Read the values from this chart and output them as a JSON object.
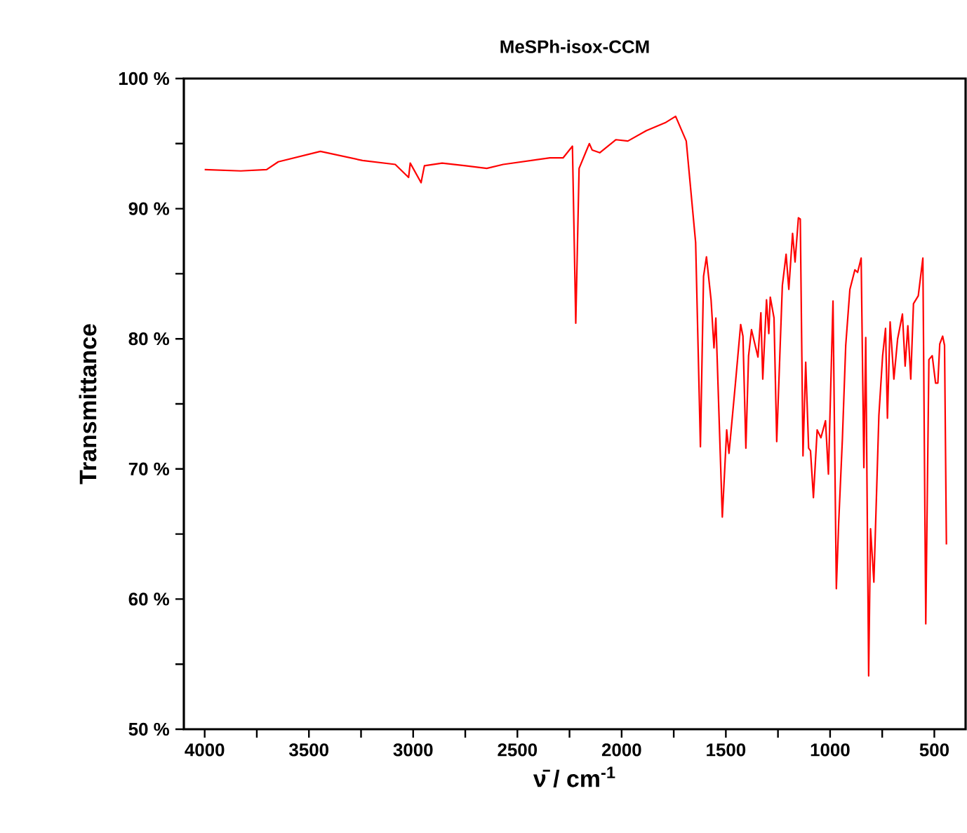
{
  "chart_data": {
    "type": "line",
    "title": "MeSPh-isox-CCM",
    "xlabel": "ν̄ / cm$^{-1}$",
    "ylabel": "Transmittance",
    "xlim": [
      4100,
      350
    ],
    "ylim": [
      50,
      100
    ],
    "xticks": [
      4000,
      {
        "value": 3750,
        "label": null
      },
      3500,
      {
        "value": 3250,
        "label": null
      },
      3000,
      {
        "value": 2750,
        "label": null
      },
      2500,
      {
        "value": 2250,
        "label": null
      },
      2000,
      {
        "value": 1750,
        "label": null
      },
      1500,
      {
        "value": 1250,
        "label": null
      },
      1000,
      {
        "value": 750,
        "label": null
      },
      500
    ],
    "yticks": [
      {
        "value": 50,
        "label": "50 %"
      },
      {
        "value": 55,
        "label": null
      },
      {
        "value": 60,
        "label": "60 %"
      },
      {
        "value": 65,
        "label": null
      },
      {
        "value": 70,
        "label": "70 %"
      },
      {
        "value": 75,
        "label": null
      },
      {
        "value": 80,
        "label": "80 %"
      },
      {
        "value": 85,
        "label": null
      },
      {
        "value": 90,
        "label": "90 %"
      },
      {
        "value": 95,
        "label": null
      },
      {
        "value": 100,
        "label": "100 %"
      }
    ],
    "grid": false,
    "marker": "none",
    "line_style": "solid",
    "x": [
      4000,
      3827,
      3703,
      3647,
      3445,
      3243,
      3086,
      3022,
      3014,
      2962,
      2946,
      2861,
      2749,
      2647,
      2568,
      2344,
      2281,
      2236,
      2220,
      2204,
      2173,
      2155,
      2141,
      2105,
      2027,
      1970,
      1881,
      1791,
      1741,
      1690,
      1645,
      1622,
      1607,
      1593,
      1571,
      1557,
      1548,
      1517,
      1496,
      1485,
      1454,
      1429,
      1418,
      1404,
      1391,
      1377,
      1346,
      1332,
      1323,
      1305,
      1294,
      1287,
      1269,
      1256,
      1229,
      1211,
      1198,
      1180,
      1168,
      1152,
      1143,
      1130,
      1117,
      1103,
      1094,
      1080,
      1062,
      1044,
      1022,
      1008,
      986,
      970,
      959,
      941,
      925,
      905,
      881,
      868,
      851,
      838,
      829,
      815,
      806,
      790,
      766,
      748,
      734,
      725,
      712,
      694,
      676,
      653,
      640,
      627,
      613,
      600,
      577,
      555,
      541,
      526,
      510,
      494,
      483,
      474,
      460,
      451,
      442
    ],
    "series": [
      {
        "color": "#ff0000",
        "values": [
          93.0,
          92.9,
          93.0,
          93.6,
          94.4,
          93.7,
          93.4,
          92.4,
          93.5,
          92.0,
          93.3,
          93.5,
          93.3,
          93.1,
          93.4,
          93.9,
          93.9,
          94.8,
          81.2,
          93.1,
          94.3,
          95.0,
          94.5,
          94.3,
          95.3,
          95.2,
          96.0,
          96.6,
          97.1,
          95.2,
          87.4,
          71.7,
          84.8,
          86.3,
          83.0,
          79.3,
          81.6,
          66.3,
          73.0,
          71.2,
          76.6,
          81.1,
          80.2,
          71.6,
          78.7,
          80.7,
          78.6,
          82.0,
          76.9,
          83.0,
          80.4,
          83.2,
          81.6,
          72.1,
          84.1,
          86.5,
          83.8,
          88.1,
          85.9,
          89.3,
          89.2,
          71.0,
          78.2,
          71.6,
          71.4,
          67.8,
          73.0,
          72.4,
          73.7,
          69.6,
          82.9,
          60.8,
          65.8,
          72.3,
          79.5,
          83.8,
          85.3,
          85.1,
          86.2,
          70.1,
          80.1,
          54.1,
          65.4,
          61.3,
          74.1,
          78.7,
          80.8,
          73.9,
          81.3,
          76.9,
          80.0,
          81.9,
          77.9,
          81.0,
          76.9,
          82.7,
          83.3,
          86.2,
          58.1,
          78.4,
          78.7,
          76.6,
          76.6,
          79.6,
          80.2,
          79.5,
          64.2
        ]
      }
    ]
  }
}
